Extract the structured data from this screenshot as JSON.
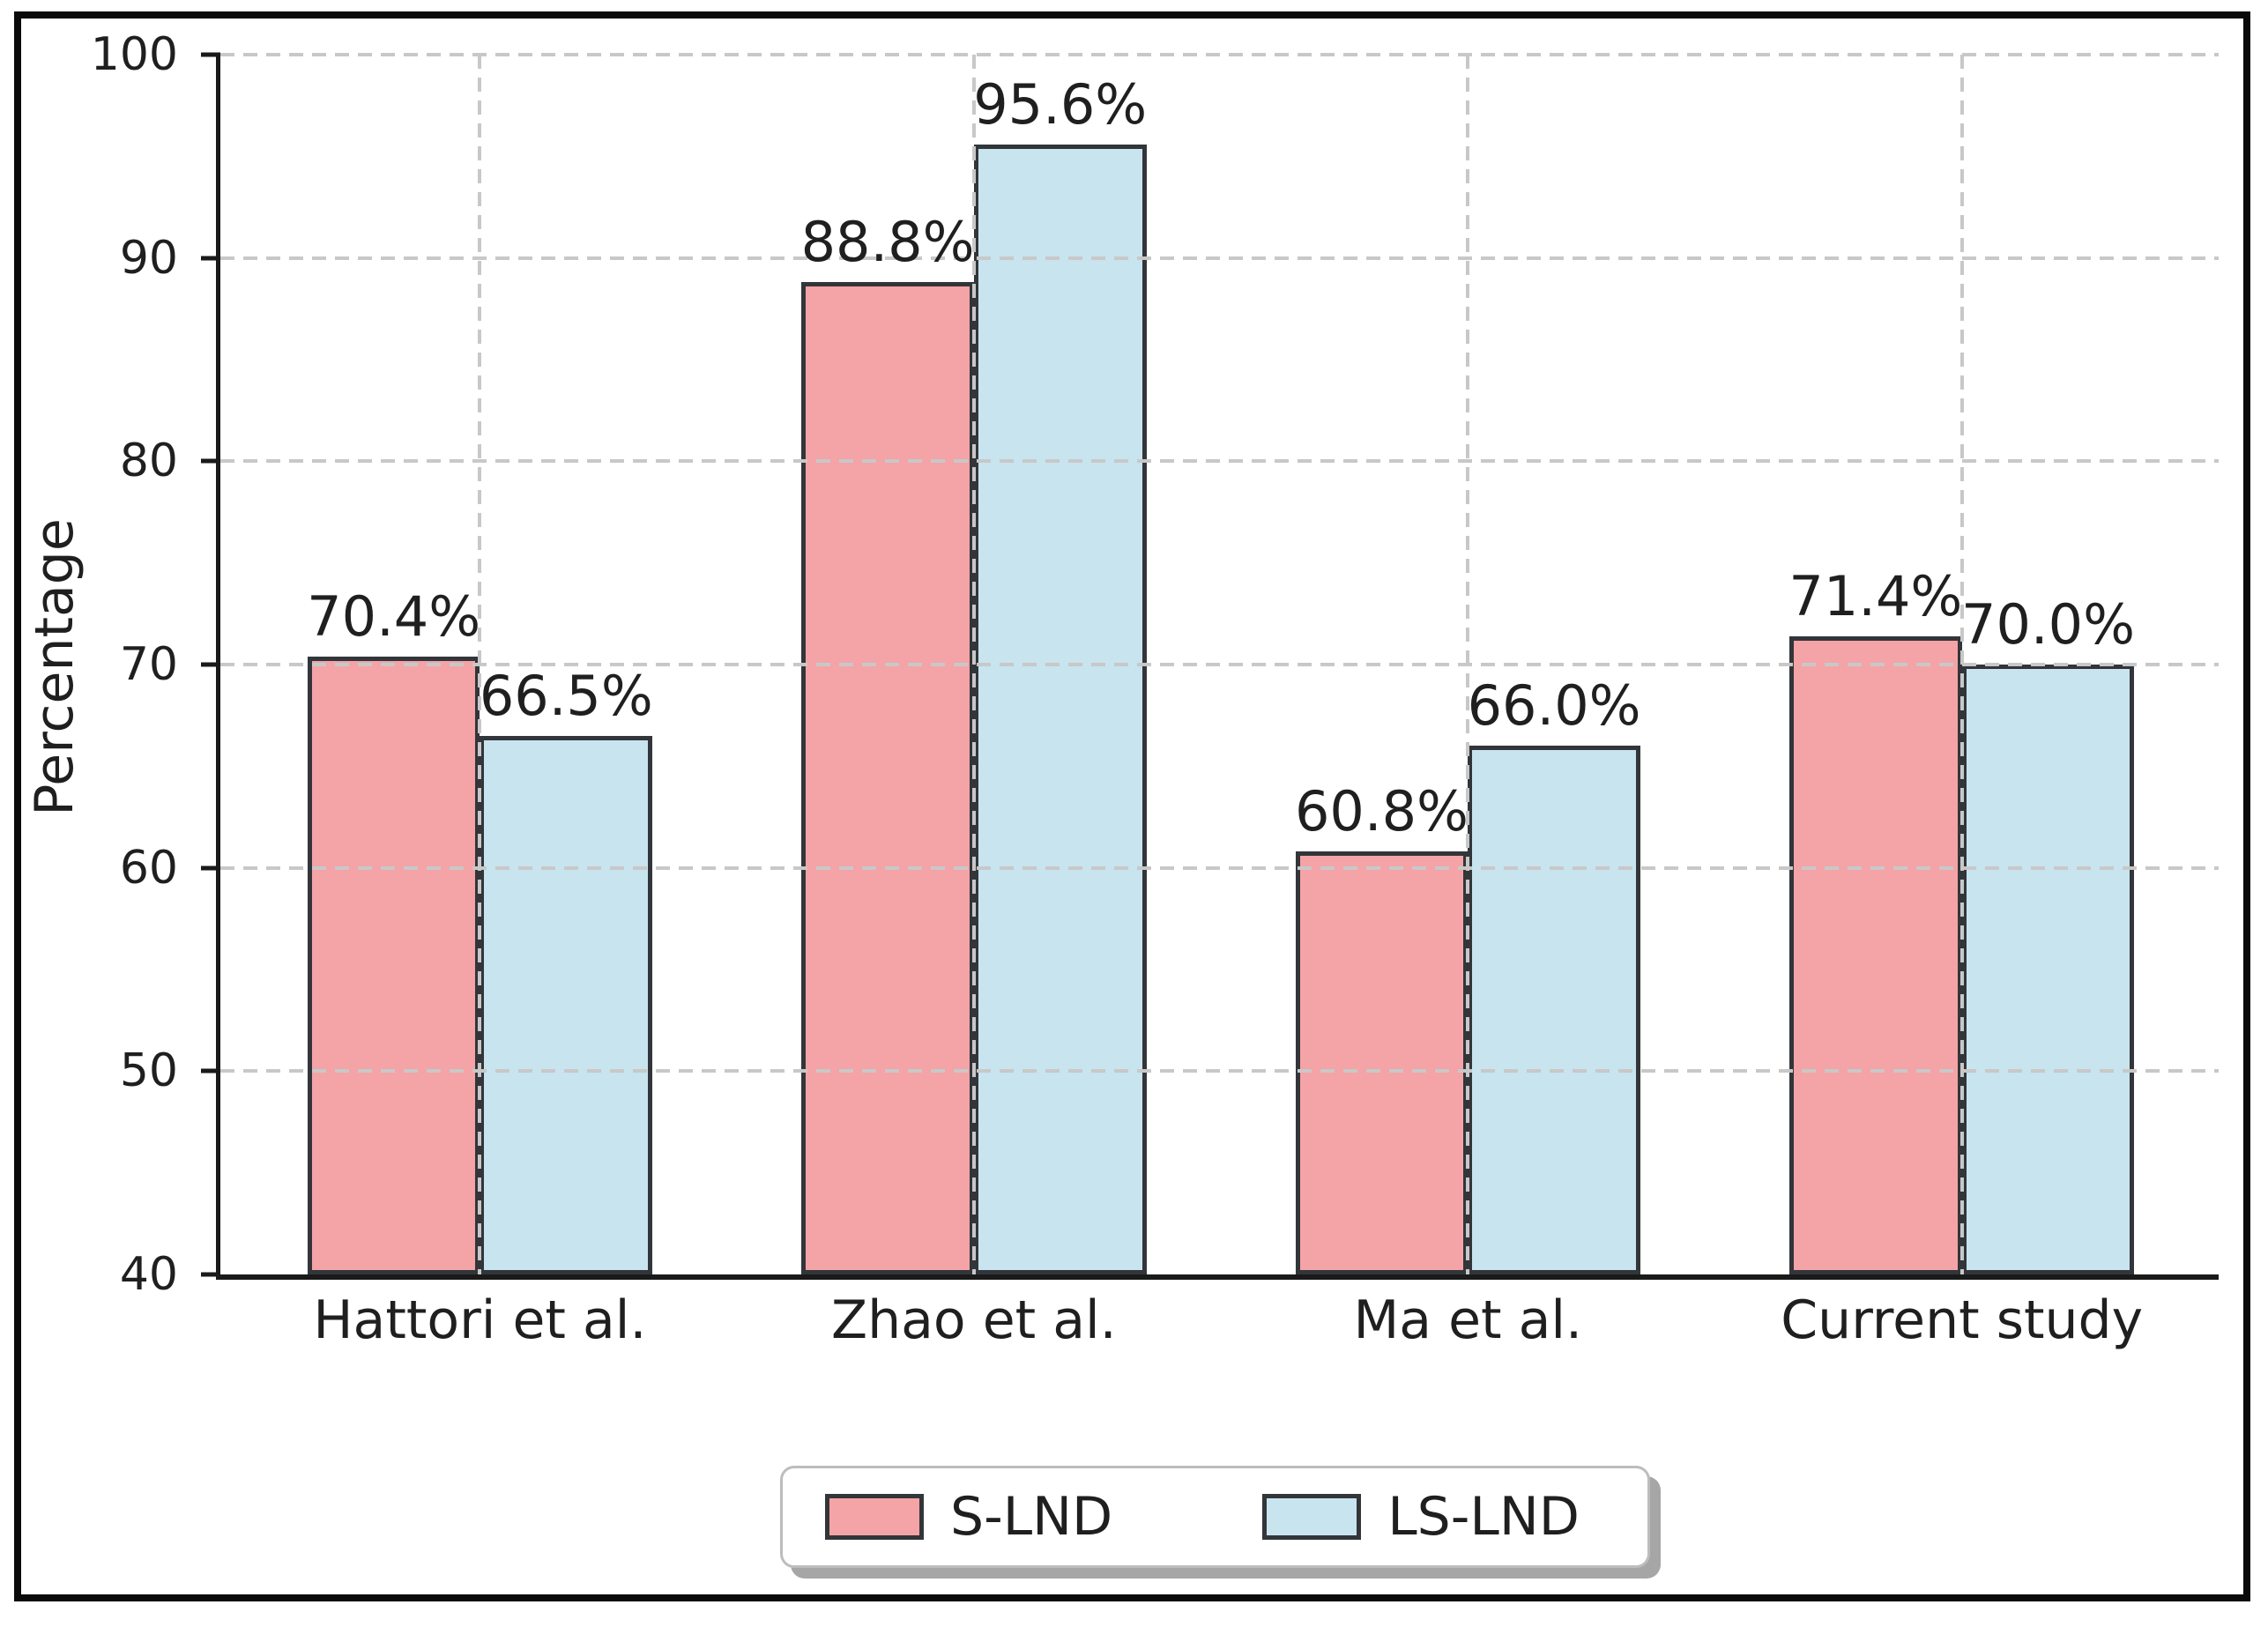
{
  "chart_data": {
    "type": "bar",
    "title": "",
    "xlabel": "",
    "ylabel": "Percentage",
    "ylim": [
      40,
      100
    ],
    "yticks": [
      40,
      50,
      60,
      70,
      80,
      90,
      100
    ],
    "grid": "dashed gridlines on both axes, drawn above bars",
    "legend": {
      "position": "bottom-center",
      "entries": [
        "S-LND",
        "LS-LND"
      ]
    },
    "categories": [
      "Hattori et al.",
      "Zhao et al.",
      "Ma et al.",
      "Current study"
    ],
    "series": [
      {
        "name": "S-LND",
        "color": "#f4a3a6",
        "edge_color": "#323539",
        "values": [
          70.4,
          88.8,
          60.8,
          71.4
        ],
        "value_labels": [
          "70.4%",
          "88.8%",
          "60.8%",
          "71.4%"
        ]
      },
      {
        "name": "LS-LND",
        "color": "#c8e4ef",
        "edge_color": "#323539",
        "values": [
          66.5,
          95.6,
          66.0,
          70.0
        ],
        "value_labels": [
          "66.5%",
          "95.6%",
          "66.0%",
          "70.0%"
        ]
      }
    ]
  },
  "colors": {
    "background": "#ffffff",
    "frame": "#0a0a0a",
    "axis": "#1a1a1a",
    "grid": "#c8c8c8",
    "text": "#1f1f1f",
    "legend_border": "#bdbdbd",
    "legend_shadow": "#a6a6a6"
  }
}
